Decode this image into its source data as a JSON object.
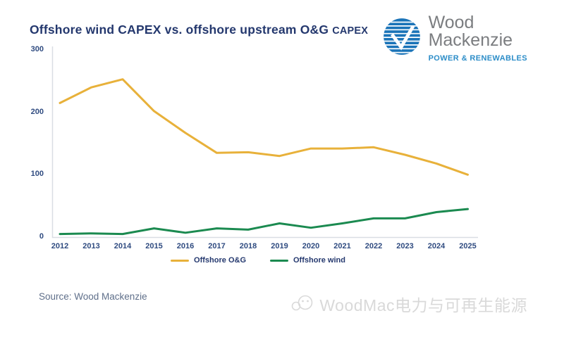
{
  "header": {
    "title_main": "Offshore wind CAPEX vs. offshore upstream O&G",
    "title_suffix": "CAPEX"
  },
  "logo": {
    "name_line1": "Wood",
    "name_line2": "Mackenzie",
    "tagline": "POWER & RENEWABLES",
    "globe_color": "#1b74b8",
    "name_color": "#7b7d80",
    "tagline_color": "#2c8dc8"
  },
  "chart_data": {
    "type": "line",
    "categories": [
      "2012",
      "2013",
      "2014",
      "2015",
      "2016",
      "2017",
      "2018",
      "2019",
      "2020",
      "2021",
      "2022",
      "2023",
      "2024",
      "2025"
    ],
    "series": [
      {
        "name": "Offshore O&G",
        "color": "#E8B13A",
        "values": [
          215,
          240,
          253,
          202,
          167,
          135,
          136,
          130,
          142,
          142,
          144,
          132,
          118,
          100
        ]
      },
      {
        "name": "Offshore wind",
        "color": "#1B8A50",
        "values": [
          5,
          6,
          5,
          14,
          7,
          14,
          12,
          22,
          15,
          22,
          30,
          30,
          40,
          45
        ]
      }
    ],
    "ylim": [
      0,
      300
    ],
    "yticks": [
      0,
      100,
      200,
      300
    ],
    "grid": false,
    "legend_position": "bottom",
    "axis_color": "#d9dde3"
  },
  "footer": {
    "source": "Source: Wood Mackenzie",
    "watermark": "WoodMac电力与可再生能源"
  }
}
